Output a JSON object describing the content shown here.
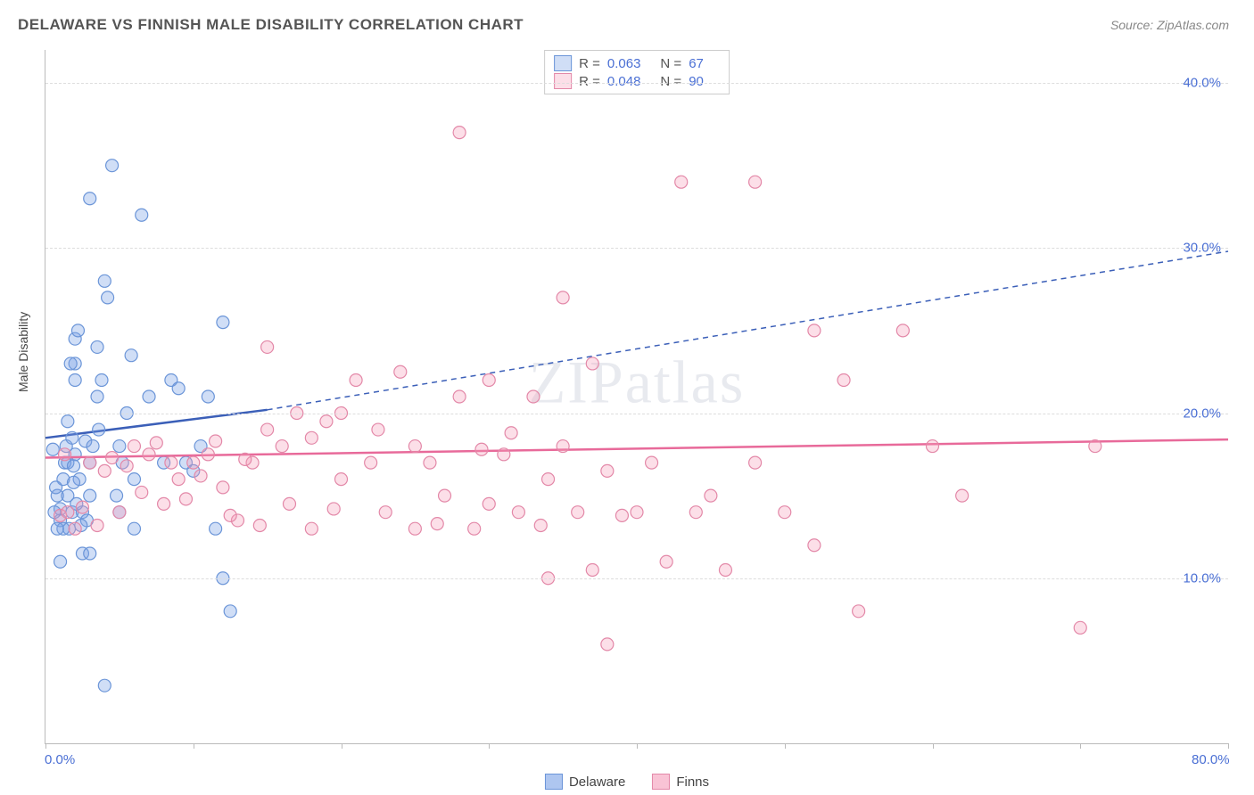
{
  "title": "DELAWARE VS FINNISH MALE DISABILITY CORRELATION CHART",
  "source": "Source: ZipAtlas.com",
  "ylabel": "Male Disability",
  "watermark": "ZIPatlas",
  "chart": {
    "type": "scatter",
    "xlim": [
      0,
      80
    ],
    "ylim": [
      0,
      42
    ],
    "x_tick_step": 10,
    "x_tick_labels": {
      "0": "0.0%",
      "80": "80.0%"
    },
    "y_ticks": [
      10,
      20,
      30,
      40
    ],
    "y_tick_labels": [
      "10.0%",
      "20.0%",
      "30.0%",
      "40.0%"
    ],
    "background_color": "#ffffff",
    "grid_color": "#dddddd",
    "axis_color": "#bbbbbb",
    "tick_label_color": "#4a6fd4",
    "marker_radius": 7,
    "marker_stroke_width": 1.2,
    "series": [
      {
        "name": "Delaware",
        "fill": "rgba(120,160,230,0.35)",
        "stroke": "#6b95d8",
        "R": "0.063",
        "N": "67",
        "trend_color": "#3b5fb8",
        "trend_solid": {
          "x1": 0,
          "y1": 18.5,
          "x2": 15,
          "y2": 20.2
        },
        "trend_dashed": {
          "x1": 15,
          "y1": 20.2,
          "x2": 80,
          "y2": 29.8
        },
        "points": [
          [
            0.5,
            17.8
          ],
          [
            0.8,
            15
          ],
          [
            1,
            13.5
          ],
          [
            1,
            14.2
          ],
          [
            1.2,
            16
          ],
          [
            1.3,
            17
          ],
          [
            1.4,
            18
          ],
          [
            1.5,
            19.5
          ],
          [
            1.5,
            15
          ],
          [
            1.6,
            13
          ],
          [
            1.8,
            14
          ],
          [
            1.8,
            18.5
          ],
          [
            2,
            17.5
          ],
          [
            2,
            22
          ],
          [
            2,
            23
          ],
          [
            2,
            24.5
          ],
          [
            2.2,
            25
          ],
          [
            2.5,
            14
          ],
          [
            2.5,
            11.5
          ],
          [
            2.8,
            13.5
          ],
          [
            3,
            15
          ],
          [
            3,
            17
          ],
          [
            3,
            33
          ],
          [
            3.5,
            21
          ],
          [
            3.5,
            24
          ],
          [
            3.8,
            22
          ],
          [
            4,
            28
          ],
          [
            4.2,
            27
          ],
          [
            4.5,
            35
          ],
          [
            5,
            18
          ],
          [
            5,
            14
          ],
          [
            5.5,
            20
          ],
          [
            6,
            16
          ],
          [
            6,
            13
          ],
          [
            6.5,
            32
          ],
          [
            7,
            21
          ],
          [
            8,
            17
          ],
          [
            8.5,
            22
          ],
          [
            9,
            21.5
          ],
          [
            9.5,
            17
          ],
          [
            10,
            16.5
          ],
          [
            10.5,
            18
          ],
          [
            11,
            21
          ],
          [
            11.5,
            13
          ],
          [
            12,
            25.5
          ],
          [
            12,
            10
          ],
          [
            12.5,
            8
          ],
          [
            4,
            3.5
          ],
          [
            3,
            11.5
          ],
          [
            1,
            11
          ],
          [
            1.5,
            17
          ],
          [
            2.3,
            16
          ],
          [
            2.7,
            18.3
          ],
          [
            1.2,
            13
          ],
          [
            0.8,
            13
          ],
          [
            0.6,
            14
          ],
          [
            0.7,
            15.5
          ],
          [
            1.9,
            15.8
          ],
          [
            2.1,
            14.5
          ],
          [
            2.4,
            13.2
          ],
          [
            1.7,
            23
          ],
          [
            1.9,
            16.8
          ],
          [
            3.2,
            18
          ],
          [
            3.6,
            19
          ],
          [
            4.8,
            15
          ],
          [
            5.2,
            17
          ],
          [
            5.8,
            23.5
          ]
        ]
      },
      {
        "name": "Finns",
        "fill": "rgba(245,155,185,0.32)",
        "stroke": "#e388a8",
        "R": "0.048",
        "N": "90",
        "trend_color": "#e86a9a",
        "trend_solid": {
          "x1": 0,
          "y1": 17.3,
          "x2": 80,
          "y2": 18.4
        },
        "points": [
          [
            1,
            13.8
          ],
          [
            1.5,
            14
          ],
          [
            2,
            13
          ],
          [
            3,
            17
          ],
          [
            4,
            16.5
          ],
          [
            5,
            14
          ],
          [
            6,
            18
          ],
          [
            7,
            17.5
          ],
          [
            8,
            14.5
          ],
          [
            8.5,
            17
          ],
          [
            9,
            16
          ],
          [
            10,
            17
          ],
          [
            11,
            17.5
          ],
          [
            12,
            15.5
          ],
          [
            13,
            13.5
          ],
          [
            14,
            17
          ],
          [
            15,
            24
          ],
          [
            15,
            19
          ],
          [
            16,
            18
          ],
          [
            17,
            20
          ],
          [
            18,
            18.5
          ],
          [
            18,
            13
          ],
          [
            19,
            19.5
          ],
          [
            20,
            20
          ],
          [
            20,
            16
          ],
          [
            21,
            22
          ],
          [
            22,
            17
          ],
          [
            23,
            14
          ],
          [
            24,
            22.5
          ],
          [
            25,
            18
          ],
          [
            25,
            13
          ],
          [
            26,
            17
          ],
          [
            27,
            15
          ],
          [
            28,
            21
          ],
          [
            28,
            37
          ],
          [
            29,
            13
          ],
          [
            30,
            22
          ],
          [
            30,
            14.5
          ],
          [
            31,
            17.5
          ],
          [
            32,
            14
          ],
          [
            33,
            21
          ],
          [
            34,
            16
          ],
          [
            34,
            10
          ],
          [
            35,
            27
          ],
          [
            35,
            18
          ],
          [
            36,
            14
          ],
          [
            37,
            23
          ],
          [
            37,
            10.5
          ],
          [
            38,
            16.5
          ],
          [
            38,
            6
          ],
          [
            40,
            14
          ],
          [
            41,
            17
          ],
          [
            42,
            11
          ],
          [
            43,
            34
          ],
          [
            44,
            14
          ],
          [
            45,
            15
          ],
          [
            46,
            10.5
          ],
          [
            48,
            34
          ],
          [
            48,
            17
          ],
          [
            50,
            14
          ],
          [
            52,
            25
          ],
          [
            52,
            12
          ],
          [
            54,
            22
          ],
          [
            55,
            8
          ],
          [
            58,
            25
          ],
          [
            60,
            18
          ],
          [
            62,
            15
          ],
          [
            70,
            7
          ],
          [
            71,
            18
          ],
          [
            2.5,
            14.3
          ],
          [
            3.5,
            13.2
          ],
          [
            4.5,
            17.3
          ],
          [
            5.5,
            16.8
          ],
          [
            6.5,
            15.2
          ],
          [
            7.5,
            18.2
          ],
          [
            9.5,
            14.8
          ],
          [
            10.5,
            16.2
          ],
          [
            11.5,
            18.3
          ],
          [
            12.5,
            13.8
          ],
          [
            13.5,
            17.2
          ],
          [
            14.5,
            13.2
          ],
          [
            16.5,
            14.5
          ],
          [
            19.5,
            14.2
          ],
          [
            22.5,
            19
          ],
          [
            26.5,
            13.3
          ],
          [
            29.5,
            17.8
          ],
          [
            31.5,
            18.8
          ],
          [
            33.5,
            13.2
          ],
          [
            39,
            13.8
          ],
          [
            1.3,
            17.5
          ]
        ]
      }
    ]
  },
  "legend_bottom": [
    {
      "label": "Delaware",
      "fill": "rgba(120,160,230,0.6)",
      "stroke": "#6b95d8"
    },
    {
      "label": "Finns",
      "fill": "rgba(245,155,185,0.6)",
      "stroke": "#e388a8"
    }
  ]
}
